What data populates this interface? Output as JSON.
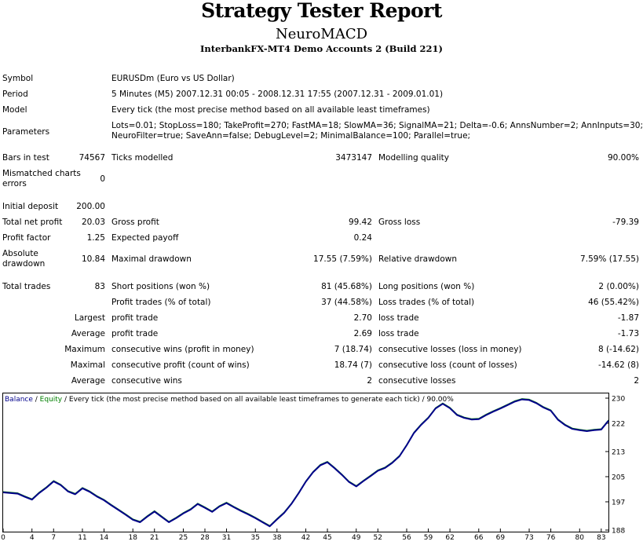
{
  "header": {
    "title": "Strategy Tester Report",
    "expert": "NeuroMACD",
    "server": "InterbankFX-MT4 Demo Accounts 2 (Build 221)"
  },
  "info": {
    "symbol_label": "Symbol",
    "symbol_value": "EURUSDm (Euro vs US Dollar)",
    "period_label": "Period",
    "period_value": "5 Minutes (M5) 2007.12.31 00:05 - 2008.12.31 17:55 (2007.12.31 - 2009.01.01)",
    "model_label": "Model",
    "model_value": "Every tick (the most precise method based on all available least timeframes)",
    "params_label": "Parameters",
    "params_line1": "Lots=0.01; StopLoss=180; TakeProfit=270; FastMA=18; SlowMA=36; SignalMA=21; Delta=-0.6; AnnsNumber=2; AnnInputs=30;",
    "params_line2": "NeuroFilter=true; SaveAnn=false; DebugLevel=2; MinimalBalance=100; Parallel=true;"
  },
  "stats": {
    "bars_label": "Bars in test",
    "bars_value": "74567",
    "ticks_label": "Ticks modelled",
    "ticks_value": "3473147",
    "quality_label": "Modelling quality",
    "quality_value": "90.00%",
    "mismatch_label_1": "Mismatched charts",
    "mismatch_label_2": "errors",
    "mismatch_value": "0",
    "deposit_label": "Initial deposit",
    "deposit_value": "200.00",
    "netprofit_label": "Total net profit",
    "netprofit_value": "20.03",
    "grossprofit_label": "Gross profit",
    "grossprofit_value": "99.42",
    "grossloss_label": "Gross loss",
    "grossloss_value": "-79.39",
    "pf_label": "Profit factor",
    "pf_value": "1.25",
    "payoff_label": "Expected payoff",
    "payoff_value": "0.24",
    "absdd_label_1": "Absolute",
    "absdd_label_2": "drawdown",
    "absdd_value": "10.84",
    "maxdd_label": "Maximal drawdown",
    "maxdd_value": "17.55 (7.59%)",
    "reldd_label": "Relative drawdown",
    "reldd_value": "7.59% (17.55)",
    "trades_label": "Total trades",
    "trades_value": "83",
    "short_label": "Short positions (won %)",
    "short_value": "81 (45.68%)",
    "long_label": "Long positions (won %)",
    "long_value": "2 (0.00%)",
    "ptrades_label": "Profit trades (% of total)",
    "ptrades_value": "37 (44.58%)",
    "ltrades_label": "Loss trades (% of total)",
    "ltrades_value": "46 (55.42%)",
    "largest_label": "Largest",
    "largest_profit_label": "profit trade",
    "largest_profit_value": "2.70",
    "largest_loss_label": "loss trade",
    "largest_loss_value": "-1.87",
    "average_label": "Average",
    "average_profit_label": "profit trade",
    "average_profit_value": "2.69",
    "average_loss_label": "loss trade",
    "average_loss_value": "-1.73",
    "maximum_label": "Maximum",
    "maxwins_label": "consecutive wins (profit in money)",
    "maxwins_value": "7 (18.74)",
    "maxlosses_label": "consecutive losses (loss in money)",
    "maxlosses_value": "8 (-14.62)",
    "maximal_label": "Maximal",
    "maxprofit_label": "consecutive profit (count of wins)",
    "maxprofit_value": "18.74 (7)",
    "maxloss_label": "consecutive loss (count of losses)",
    "maxloss_value": "-14.62 (8)",
    "average2_label": "Average",
    "avgwins_label": "consecutive wins",
    "avgwins_value": "2",
    "avglosses_label": "consecutive losses",
    "avglosses_value": "2"
  },
  "chart_data": {
    "type": "line",
    "title_balance": "Balance",
    "title_sep": " / ",
    "title_equity": "Equity",
    "title_rest": " / Every tick (the most precise method based on all available least timeframes to generate each tick) / 90.00%",
    "balance_color": "#00008b",
    "equity_color": "#008000",
    "x_ticks": [
      "0",
      "4",
      "7",
      "11",
      "14",
      "18",
      "21",
      "25",
      "28",
      "31",
      "35",
      "38",
      "42",
      "45",
      "49",
      "52",
      "56",
      "59",
      "62",
      "66",
      "69",
      "73",
      "76",
      "80",
      "83"
    ],
    "y_ticks": [
      "188",
      "197",
      "205",
      "213",
      "222",
      "230"
    ],
    "xlim": [
      0,
      84
    ],
    "ylim": [
      187.5,
      231.5
    ],
    "series": [
      {
        "name": "Balance",
        "x": [
          0,
          2,
          3,
          4,
          5,
          6,
          7,
          8,
          9,
          10,
          11,
          12,
          13,
          14,
          15,
          16,
          17,
          18,
          19,
          20,
          21,
          22,
          23,
          24,
          25,
          26,
          27,
          28,
          29,
          30,
          31,
          32,
          33,
          34,
          35,
          36,
          37,
          38,
          39,
          40,
          41,
          42,
          43,
          44,
          45,
          46,
          47,
          48,
          49,
          50,
          51,
          52,
          53,
          54,
          55,
          56,
          57,
          58,
          59,
          60,
          61,
          62,
          63,
          64,
          65,
          66,
          67,
          68,
          69,
          70,
          71,
          72,
          73,
          74,
          75,
          76,
          77,
          78,
          79,
          80,
          81,
          82,
          83,
          84
        ],
        "y": [
          200.0,
          199.6,
          198.6,
          197.7,
          199.8,
          201.5,
          203.5,
          202.3,
          200.3,
          199.4,
          201.3,
          200.2,
          198.7,
          197.5,
          195.9,
          194.4,
          192.9,
          191.3,
          190.5,
          192.3,
          193.9,
          192.2,
          190.5,
          191.8,
          193.3,
          194.5,
          196.3,
          195.1,
          193.8,
          195.5,
          196.6,
          195.3,
          194.1,
          193.0,
          191.8,
          190.5,
          189.2,
          191.4,
          193.5,
          196.3,
          199.7,
          203.4,
          206.4,
          208.6,
          209.6,
          207.7,
          205.6,
          203.3,
          201.9,
          203.6,
          205.2,
          206.9,
          207.8,
          209.4,
          211.5,
          215.0,
          218.9,
          221.5,
          223.7,
          226.7,
          228.2,
          226.8,
          224.6,
          223.7,
          223.2,
          223.3,
          224.6,
          225.7,
          226.7,
          227.8,
          228.9,
          229.6,
          229.4,
          228.4,
          227.0,
          226.0,
          223.1,
          221.4,
          220.2,
          219.8,
          219.5,
          219.8,
          220.0,
          222.8
        ]
      }
    ]
  }
}
